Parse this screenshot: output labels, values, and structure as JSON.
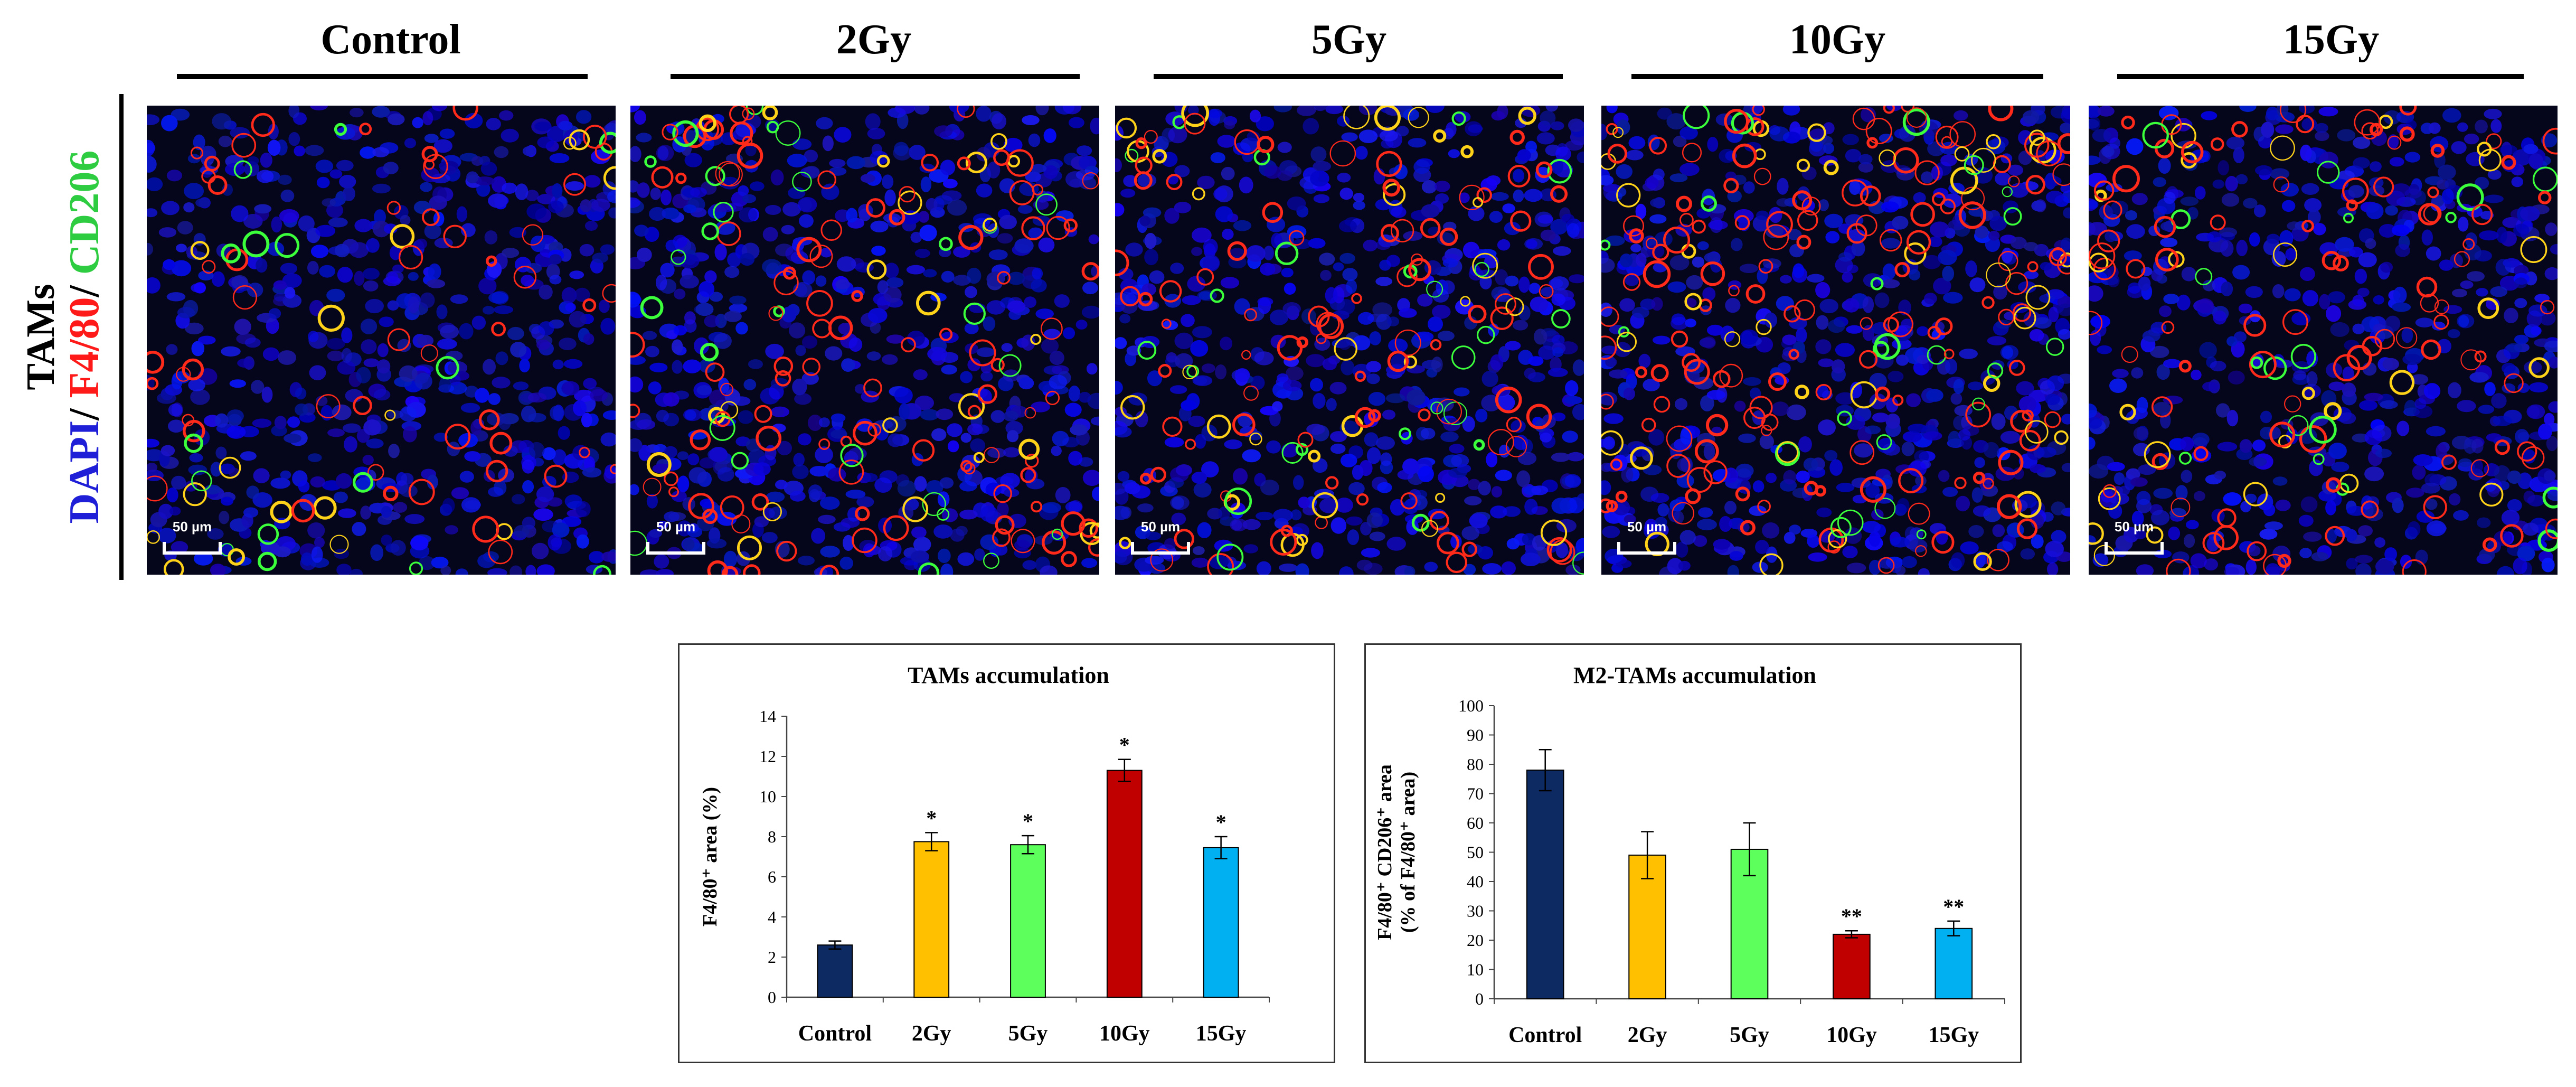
{
  "groups": [
    "Control",
    "2Gy",
    "5Gy",
    "10Gy",
    "15Gy"
  ],
  "row_label": {
    "line1": "TAMs",
    "dapi": "DAPI",
    "sep1": "/ ",
    "f480": "F4/80",
    "sep2": "/ ",
    "cd206": "CD206"
  },
  "scale_bar_label": "50 µm",
  "colors": {
    "control": "#0d2a63",
    "gy2": "#ffc000",
    "gy5": "#5cff5c",
    "gy10": "#c00000",
    "gy15": "#00b0f0",
    "dapi": "#1f1fd8",
    "f480": "#ff1a1a",
    "cd206": "#2ecc40"
  },
  "chart_data": [
    {
      "type": "bar",
      "title": "TAMs accumulation",
      "ylabel": "F4/80⁺ area (%)",
      "xlabel": "",
      "categories": [
        "Control",
        "2Gy",
        "5Gy",
        "10Gy",
        "15Gy"
      ],
      "values": [
        2.6,
        7.75,
        7.6,
        11.3,
        7.45
      ],
      "errors": [
        0.2,
        0.45,
        0.45,
        0.55,
        0.55
      ],
      "significance": [
        "",
        "*",
        "*",
        "*",
        "*"
      ],
      "ylim": [
        0,
        14
      ],
      "yticks": [
        0,
        2,
        4,
        6,
        8,
        10,
        12,
        14
      ]
    },
    {
      "type": "bar",
      "title": "M2-TAMs accumulation",
      "ylabel_line1": "F4/80⁺ CD206⁺ area",
      "ylabel_line2": "(% of F4/80⁺ area)",
      "xlabel": "",
      "categories": [
        "Control",
        "2Gy",
        "5Gy",
        "10Gy",
        "15Gy"
      ],
      "values": [
        78,
        49,
        51,
        22,
        24
      ],
      "errors": [
        7,
        8,
        9,
        1.2,
        2.5
      ],
      "significance": [
        "",
        "",
        "",
        "**",
        "**"
      ],
      "ylim": [
        0,
        100
      ],
      "yticks": [
        0,
        10,
        20,
        30,
        40,
        50,
        60,
        70,
        80,
        90,
        100
      ]
    }
  ]
}
